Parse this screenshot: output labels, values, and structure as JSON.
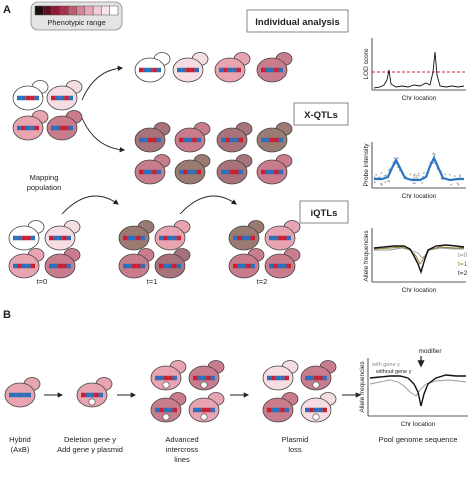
{
  "panels": {
    "a": "A",
    "b": "B"
  },
  "legend": {
    "title": "Phenotypic range",
    "swatches": [
      "#1a0f0f",
      "#5a1024",
      "#8c1a36",
      "#a8324c",
      "#c25a70",
      "#d48494",
      "#e4aab6",
      "#f0cdd4",
      "#f8e6ea",
      "#ffffff"
    ]
  },
  "panel_a": {
    "boxes": {
      "individual": "Individual analysis",
      "xqtl": "X-QTLs",
      "iqtl": "iQTLs"
    },
    "mapping_label": [
      "Mapping",
      "population"
    ],
    "time_labels": [
      "t=0",
      "t=1",
      "t=2"
    ],
    "plots": {
      "lod": {
        "ylabel": "LOD score",
        "xlabel": "Chr location"
      },
      "probe": {
        "ylabel": "Probe intensity",
        "xlabel": "Chr location"
      },
      "allele": {
        "ylabel": "Allele frequencies",
        "xlabel": "Chr location",
        "legend": [
          "t=0",
          "t=1",
          "t=2"
        ]
      }
    }
  },
  "panel_b": {
    "steps": [
      [
        "Hybrid",
        "(AxB)"
      ],
      [
        "Deletion gene y",
        "Add gene y plasmid"
      ],
      [
        "Advanced",
        "intercross",
        "lines"
      ],
      [
        "Plasmid",
        "loss"
      ],
      [
        "Pool genome sequence"
      ]
    ],
    "plot": {
      "ylabel": "Allele frequencies",
      "xlabel": "Chr location",
      "annotation": "modifier",
      "legend": [
        "with gene y",
        "without gene y"
      ]
    }
  },
  "colors": {
    "cell_white": "#ffffff",
    "cell_pale": "#f6dde2",
    "cell_pink": "#e8a4b1",
    "cell_rose": "#c97c8c",
    "cell_mauve": "#a7727a",
    "cell_brown": "#9b7a72",
    "cell_dark": "#7d5a60",
    "chrom_blue": "#2d6fb8",
    "chrom_red": "#c82032",
    "threshold_red": "#d21a2a",
    "probe_blue": "#2a76c2"
  }
}
